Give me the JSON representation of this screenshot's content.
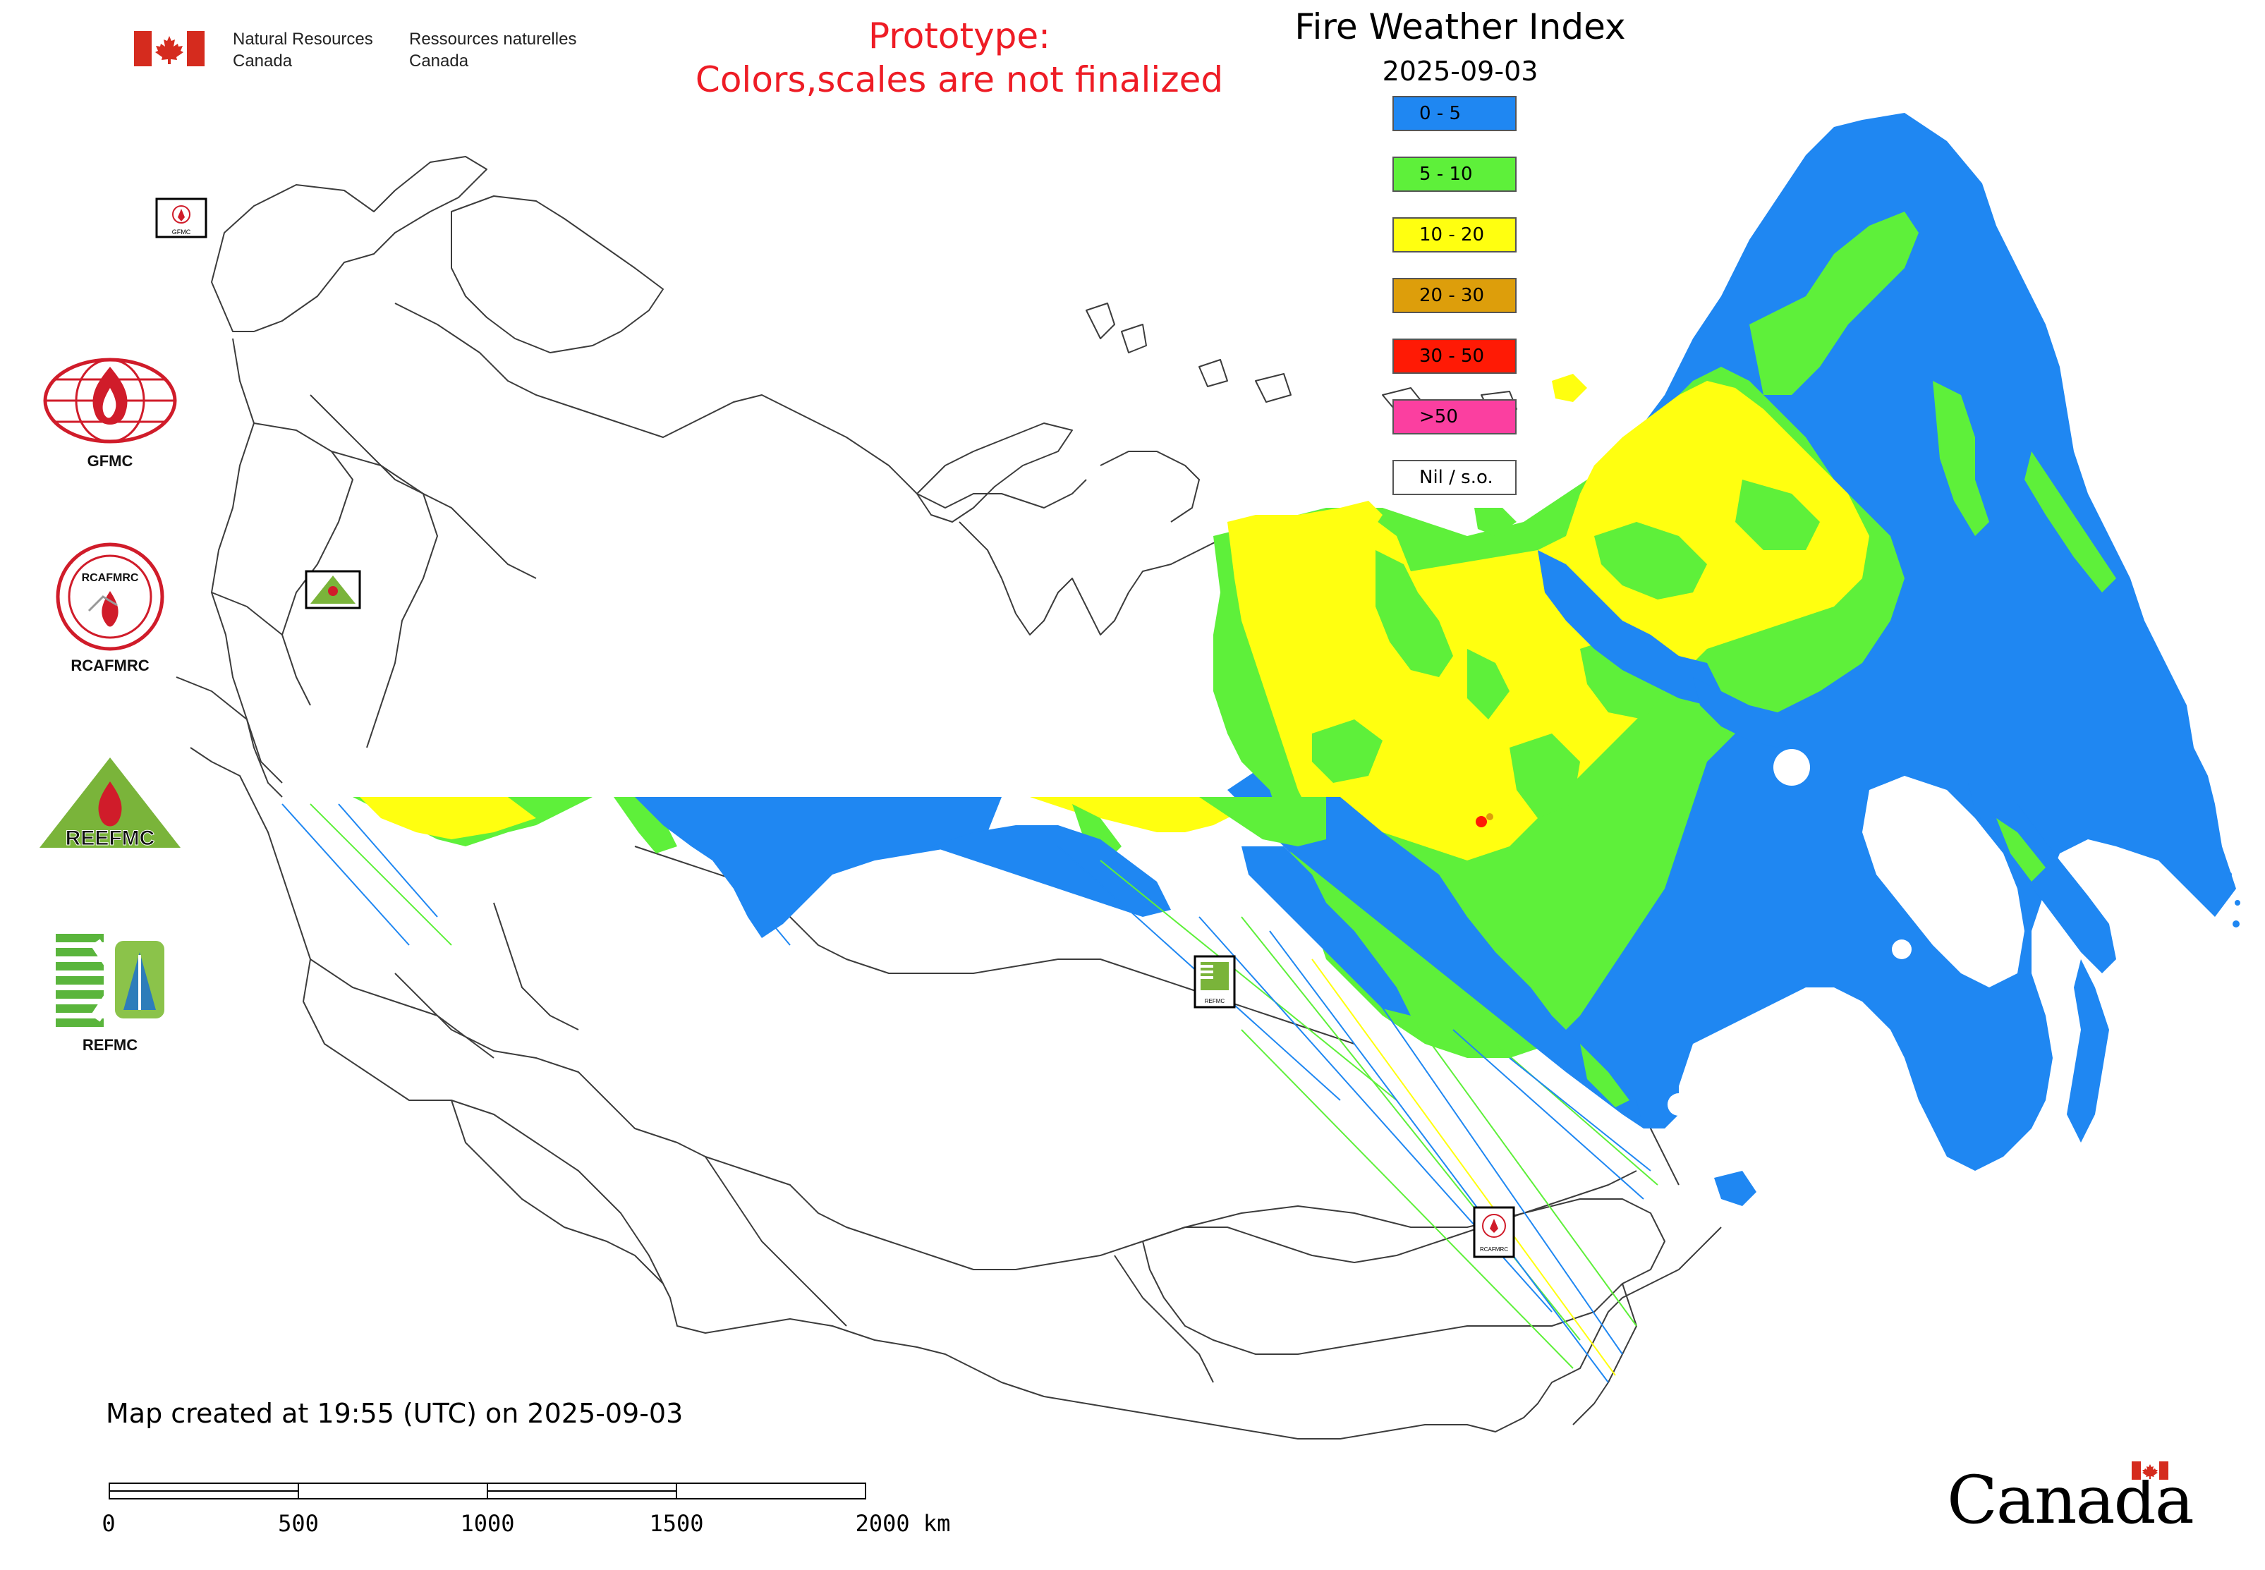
{
  "header": {
    "org_en_line1": "Natural Resources",
    "org_en_line2": "Canada",
    "org_fr_line1": "Ressources naturelles",
    "org_fr_line2": "Canada",
    "prototype_line1": "Prototype:",
    "prototype_line2": "Colors,scales are not finalized"
  },
  "legend": {
    "title": "Fire Weather Index",
    "date": "2025-09-03",
    "items": [
      {
        "label": "0 - 5",
        "color": "#1f87f2"
      },
      {
        "label": "5 - 10",
        "color": "#5ef03a"
      },
      {
        "label": "10 - 20",
        "color": "#ffff10"
      },
      {
        "label": "20 - 30",
        "color": "#dd9e0b"
      },
      {
        "label": "30 - 50",
        "color": "#ff1a05"
      },
      {
        "label": ">50",
        "color": "#fb3fa0"
      },
      {
        "label": "Nil / s.o.",
        "color": "#ffffff"
      }
    ]
  },
  "logos": {
    "gfmc": "GFMC",
    "rcafmrc": "RCAFMRC",
    "reefmc": "REEFMC",
    "refmc": "REFMC",
    "rcafmrc_ring": "RCAFMRC",
    "reefmc_text": "REEFMC",
    "map_markers": [
      {
        "id": "gfmc-marker",
        "label": "GFMC"
      },
      {
        "id": "reefmc-marker",
        "label": "REEFMC"
      },
      {
        "id": "refmc-marker",
        "label": "REFMC"
      },
      {
        "id": "rcafmrc-marker",
        "label": "RCAFMRC"
      }
    ]
  },
  "footer": {
    "created": "Map created at 19:55 (UTC) on 2025-09-03",
    "scale_ticks": [
      "0",
      "500",
      "1000",
      "1500",
      "2000 km"
    ],
    "wordmark": "Canada"
  },
  "colors": {
    "border": "#3c3c3c",
    "warning_red": "#ee1c25",
    "canada_red": "#d52b1e"
  }
}
